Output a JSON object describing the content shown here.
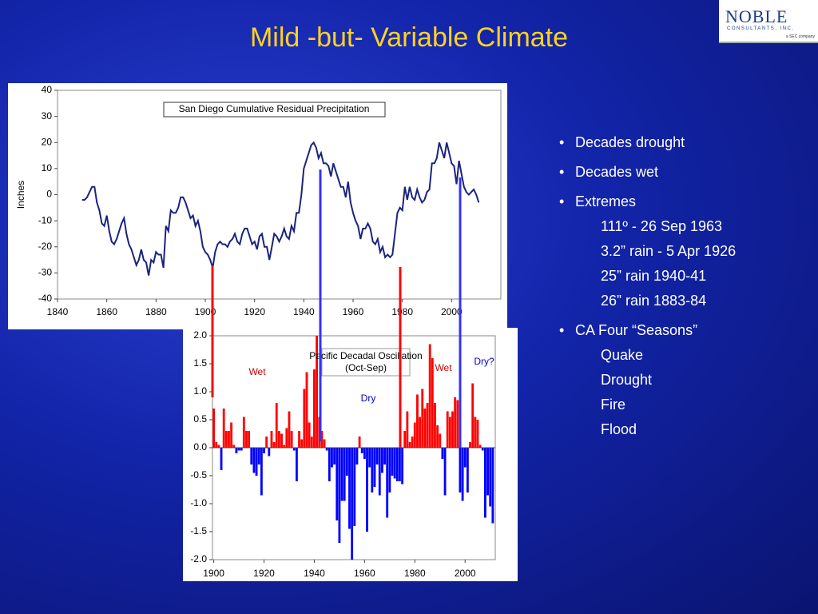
{
  "title": "Mild -but- Variable Climate",
  "logo": {
    "name": "NOBLE",
    "sub": "CONSULTANTS, INC.",
    "tag": "a SEC company"
  },
  "bullets": [
    {
      "text": "Decades drought",
      "sub": []
    },
    {
      "text": "Decades wet",
      "sub": []
    },
    {
      "text": "Extremes",
      "sub": [
        "111º - 26 Sep 1963",
        "3.2” rain - 5 Apr 1926",
        "25” rain 1940-41",
        "26” rain 1883-84"
      ]
    },
    {
      "text": "CA Four “Seasons”",
      "sub": [
        "Quake",
        "Drought",
        "Fire",
        "Flood"
      ]
    }
  ],
  "chart_data": [
    {
      "type": "line",
      "title": "San Diego Cumulative Residual Precipitation",
      "ylabel": "Inches",
      "color": "#1a237e",
      "xlim": [
        1840,
        2020
      ],
      "xticks": [
        1840,
        1860,
        1880,
        1900,
        1920,
        1940,
        1960,
        1980,
        2000
      ],
      "ylim": [
        -40,
        40
      ],
      "yticks": [
        40,
        30,
        20,
        10,
        0,
        -10,
        -20,
        -30,
        -40
      ],
      "x": [
        1850,
        1851,
        1852,
        1853,
        1854,
        1855,
        1856,
        1857,
        1858,
        1859,
        1860,
        1861,
        1862,
        1863,
        1864,
        1865,
        1866,
        1867,
        1868,
        1869,
        1870,
        1871,
        1872,
        1873,
        1874,
        1875,
        1876,
        1877,
        1878,
        1879,
        1880,
        1881,
        1882,
        1883,
        1884,
        1885,
        1886,
        1887,
        1888,
        1889,
        1890,
        1891,
        1892,
        1893,
        1894,
        1895,
        1896,
        1897,
        1898,
        1899,
        1900,
        1901,
        1902,
        1903,
        1904,
        1905,
        1906,
        1907,
        1908,
        1909,
        1910,
        1911,
        1912,
        1913,
        1914,
        1915,
        1916,
        1917,
        1918,
        1919,
        1920,
        1921,
        1922,
        1923,
        1924,
        1925,
        1926,
        1927,
        1928,
        1929,
        1930,
        1931,
        1932,
        1933,
        1934,
        1935,
        1936,
        1937,
        1938,
        1939,
        1940,
        1941,
        1942,
        1943,
        1944,
        1945,
        1946,
        1947,
        1948,
        1949,
        1950,
        1951,
        1952,
        1953,
        1954,
        1955,
        1956,
        1957,
        1958,
        1959,
        1960,
        1961,
        1962,
        1963,
        1964,
        1965,
        1966,
        1967,
        1968,
        1969,
        1970,
        1971,
        1972,
        1973,
        1974,
        1975,
        1976,
        1977,
        1978,
        1979,
        1980,
        1981,
        1982,
        1983,
        1984,
        1985,
        1986,
        1987,
        1988,
        1989,
        1990,
        1991,
        1992,
        1993,
        1994,
        1995,
        1996,
        1997,
        1998,
        1999,
        2000,
        2001,
        2002,
        2003,
        2004,
        2005,
        2006,
        2007,
        2008,
        2009,
        2010,
        2011
      ],
      "values": [
        -2,
        -2,
        -1,
        1,
        3,
        3,
        -3,
        -6,
        -11,
        -12,
        -8,
        -14,
        -18,
        -19,
        -17,
        -14,
        -11,
        -9,
        -15,
        -19,
        -21,
        -24,
        -27,
        -25,
        -21,
        -25,
        -26,
        -31,
        -25,
        -26,
        -22,
        -23,
        -23,
        -28,
        -12,
        -14,
        -6,
        -7,
        -7,
        -5,
        -1,
        -1,
        -3,
        -6,
        -9,
        -8,
        -12,
        -10,
        -14,
        -20,
        -22,
        -23,
        -25,
        -28,
        -22,
        -19,
        -18,
        -19,
        -19,
        -20,
        -18,
        -17,
        -15,
        -18,
        -19,
        -15,
        -13,
        -13,
        -16,
        -19,
        -18,
        -21,
        -16,
        -15,
        -20,
        -20,
        -25,
        -20,
        -15,
        -16,
        -18,
        -16,
        -13,
        -16,
        -17,
        -12,
        -14,
        -7,
        -7,
        0,
        10,
        13,
        16,
        19,
        20,
        18,
        14,
        16,
        12,
        12,
        11,
        7,
        12,
        9,
        6,
        3,
        3,
        -1,
        5,
        -3,
        -7,
        -10,
        -12,
        -17,
        -13,
        -13,
        -11,
        -13,
        -18,
        -19,
        -17,
        -22,
        -20,
        -24,
        -23,
        -24,
        -23,
        -15,
        -7,
        -5,
        -6,
        3,
        -2,
        3,
        -1,
        -2,
        2,
        -1,
        -3,
        -2,
        1,
        2,
        12,
        12,
        14,
        20,
        17,
        14,
        20,
        16,
        12,
        11,
        4,
        13,
        8,
        3,
        1,
        0,
        1,
        2,
        0,
        -3
      ]
    },
    {
      "type": "bar",
      "title": "Pacific Decadal Oscillation",
      "subtitle": "(Oct-Sep)",
      "positive_color": "#ff0000",
      "negative_color": "#0000ff",
      "xlim": [
        1899.5,
        2012
      ],
      "xticks": [
        1900,
        1920,
        1940,
        1960,
        1980,
        2000
      ],
      "ylim": [
        -2,
        2
      ],
      "yticks": [
        {
          "value": 2,
          "label": "2.0"
        },
        {
          "value": 1.5,
          "label": "1.5"
        },
        {
          "value": 1,
          "label": "1.0"
        },
        {
          "value": 0.5,
          "label": "0.5"
        },
        {
          "value": 0,
          "label": "0.0"
        },
        {
          "value": -0.5,
          "label": "-0.5"
        },
        {
          "value": -1,
          "label": "-1.0"
        },
        {
          "value": -1.5,
          "label": "-1.5"
        },
        {
          "value": -2,
          "label": "-2.0"
        }
      ],
      "annotations": [
        "Wet",
        "Dry",
        "Wet",
        "Dry?"
      ],
      "x": [
        1900,
        1901,
        1902,
        1903,
        1904,
        1905,
        1906,
        1907,
        1908,
        1909,
        1910,
        1911,
        1912,
        1913,
        1914,
        1915,
        1916,
        1917,
        1918,
        1919,
        1920,
        1921,
        1922,
        1923,
        1924,
        1925,
        1926,
        1927,
        1928,
        1929,
        1930,
        1931,
        1932,
        1933,
        1934,
        1935,
        1936,
        1937,
        1938,
        1939,
        1940,
        1941,
        1942,
        1943,
        1944,
        1945,
        1946,
        1947,
        1948,
        1949,
        1950,
        1951,
        1952,
        1953,
        1954,
        1955,
        1956,
        1957,
        1958,
        1959,
        1960,
        1961,
        1962,
        1963,
        1964,
        1965,
        1966,
        1967,
        1968,
        1969,
        1970,
        1971,
        1972,
        1973,
        1974,
        1975,
        1976,
        1977,
        1978,
        1979,
        1980,
        1981,
        1982,
        1983,
        1984,
        1985,
        1986,
        1987,
        1988,
        1989,
        1990,
        1991,
        1992,
        1993,
        1994,
        1995,
        1996,
        1997,
        1998,
        1999,
        2000,
        2001,
        2002,
        2003,
        2004,
        2005,
        2006,
        2007,
        2008,
        2009,
        2010,
        2011
      ],
      "values": [
        0.7,
        0.1,
        0.05,
        -0.4,
        0.7,
        0.3,
        0.3,
        0.45,
        0.05,
        -0.1,
        -0.05,
        -0.05,
        0.55,
        0.3,
        0.3,
        -0.3,
        -0.45,
        -0.5,
        -0.3,
        -0.85,
        -0.1,
        0.2,
        -0.15,
        0.3,
        0.1,
        0.8,
        0.3,
        0.25,
        0.05,
        0.35,
        0.65,
        0.3,
        -0.05,
        -0.6,
        0.3,
        0.15,
        1.05,
        1.35,
        0.45,
        0.2,
        1.4,
        2.0,
        0.55,
        0.3,
        0.15,
        -0.05,
        -0.6,
        -0.35,
        -0.3,
        -1.3,
        -1.7,
        -0.95,
        -0.95,
        -0.5,
        -1.45,
        -2.0,
        -1.4,
        -0.3,
        0.2,
        -0.1,
        -0.2,
        -1.5,
        -0.35,
        -0.8,
        -0.7,
        -0.3,
        -0.85,
        -0.45,
        -0.3,
        -1.25,
        -0.8,
        -0.5,
        -0.55,
        -0.6,
        -0.6,
        -0.65,
        0.3,
        0.65,
        0.1,
        0.2,
        0.45,
        0.95,
        0.55,
        1.05,
        0.7,
        0.8,
        1.85,
        1.6,
        0.8,
        0.4,
        0.25,
        -0.2,
        -0.85,
        0.65,
        0.55,
        0.65,
        0.9,
        0.85,
        -0.8,
        -0.95,
        -0.35,
        -0.8,
        0.1,
        1.15,
        0.55,
        0.5,
        0.05,
        -0.05,
        -1.25,
        -0.85,
        -1.05,
        -1.35
      ]
    }
  ]
}
